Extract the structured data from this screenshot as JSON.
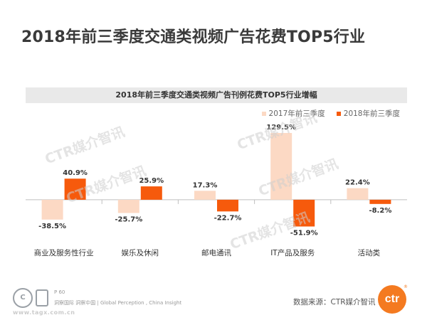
{
  "page": {
    "title": "2018年前三季度交通类视频广告花费TOP5行业"
  },
  "chart_data": {
    "type": "bar",
    "title": "2018年前三季度交通类视频广告刊例花费TOP5行业增幅",
    "categories": [
      "商业及服务性行业",
      "娱乐及休闲",
      "邮电通讯",
      "IT产品及服务",
      "活动类"
    ],
    "series": [
      {
        "name": "2017年前三季度",
        "color": "#fcd9c4",
        "values": [
          -38.5,
          -25.7,
          17.3,
          129.5,
          22.4
        ]
      },
      {
        "name": "2018年前三季度",
        "color": "#f65a0c",
        "values": [
          40.9,
          25.9,
          -22.7,
          -51.9,
          -8.2
        ]
      }
    ],
    "value_suffix": "%",
    "ylim": [
      -65,
      135
    ],
    "grid": false,
    "legend_position": "top-right"
  },
  "watermark": "CTR媒介智讯",
  "footer": {
    "page_label": "P 60",
    "tagline": "洞察国际 洞察中国 | Global Perception , China Insight",
    "url": "www.tagx.com.cn",
    "seal_text": "C",
    "source": "数据来源：CTR媒介智讯",
    "logo_text": "ctr",
    "logo_mark": "®"
  }
}
